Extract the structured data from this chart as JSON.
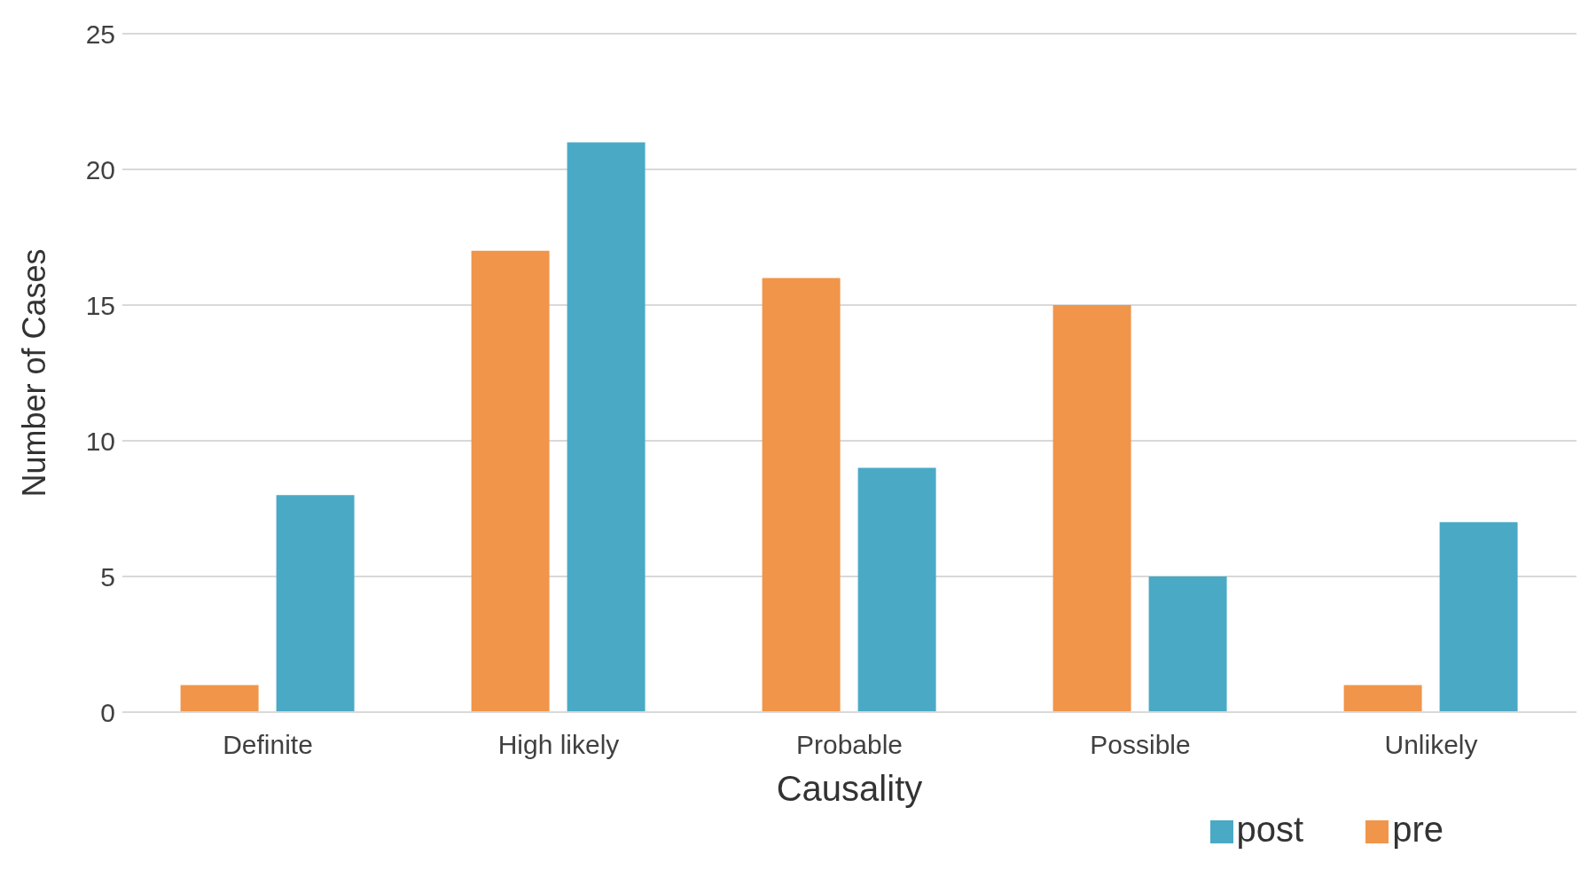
{
  "chart_data": {
    "type": "bar",
    "xlabel": "Causality",
    "ylabel": "Number of Cases",
    "categories": [
      "Definite",
      "High likely",
      "Probable",
      "Possible",
      "Unlikely"
    ],
    "series": [
      {
        "name": "pre",
        "color": "#f0954a",
        "values": [
          1,
          17,
          16,
          15,
          1
        ]
      },
      {
        "name": "post",
        "color": "#4aaac5",
        "values": [
          8,
          21,
          9,
          5,
          7
        ]
      }
    ],
    "ylim": [
      0,
      25
    ],
    "yticks": [
      0,
      5,
      10,
      15,
      20,
      25
    ],
    "grid": "y",
    "legend": "bottom right"
  }
}
